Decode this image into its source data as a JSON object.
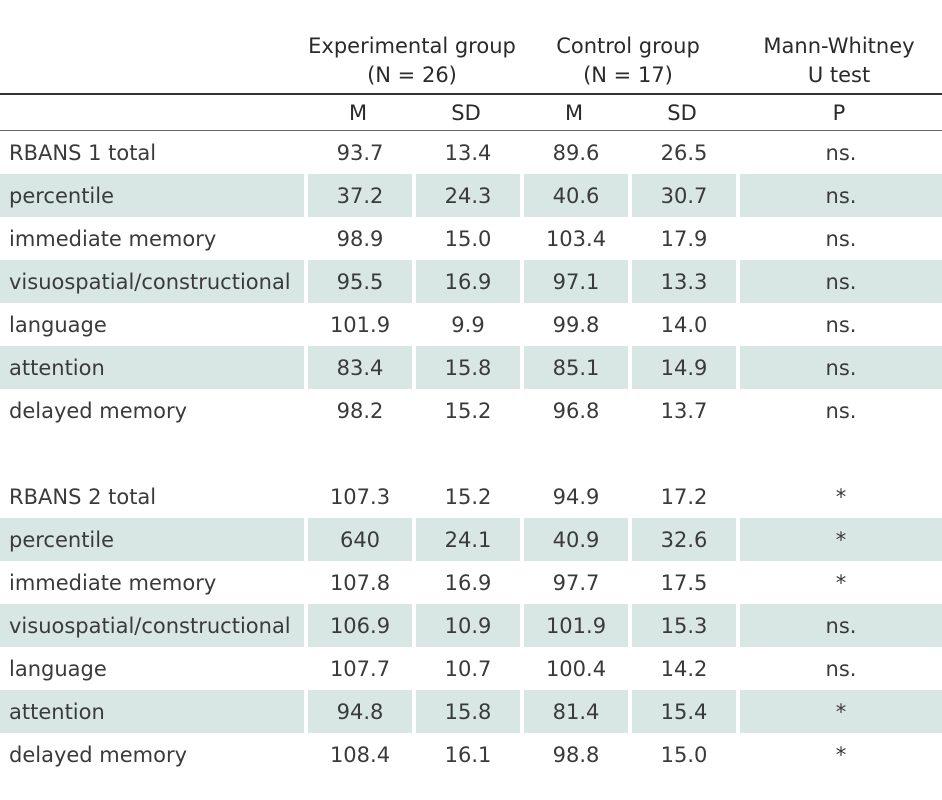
{
  "headers": {
    "experimental": "Experimental group",
    "experimental_n": "(N = 26)",
    "control": "Control group",
    "control_n": "(N = 17)",
    "test": "Mann-Whitney",
    "test2": "U test",
    "sub": [
      "M",
      "SD",
      "M",
      "SD",
      "P"
    ]
  },
  "rows": [
    {
      "label": "RBANS 1 total",
      "v": [
        "93.7",
        "13.4",
        "89.6",
        "26.5",
        "ns."
      ]
    },
    {
      "label": "percentile",
      "v": [
        "37.2",
        "24.3",
        "40.6",
        "30.7",
        "ns."
      ]
    },
    {
      "label": "immediate memory",
      "v": [
        "98.9",
        "15.0",
        "103.4",
        "17.9",
        "ns."
      ]
    },
    {
      "label": "visuospatial/constructional",
      "v": [
        "95.5",
        "16.9",
        "97.1",
        "13.3",
        "ns."
      ]
    },
    {
      "label": "language",
      "v": [
        "101.9",
        "9.9",
        "99.8",
        "14.0",
        "ns."
      ]
    },
    {
      "label": "attention",
      "v": [
        "83.4",
        "15.8",
        "85.1",
        "14.9",
        "ns."
      ]
    },
    {
      "label": "delayed memory",
      "v": [
        "98.2",
        "15.2",
        "96.8",
        "13.7",
        "ns."
      ]
    },
    {
      "label": "RBANS 2 total",
      "v": [
        "107.3",
        "15.2",
        "94.9",
        "17.2",
        "*"
      ]
    },
    {
      "label": "percentile",
      "v": [
        "640",
        "24.1",
        "40.9",
        "32.6",
        "*"
      ]
    },
    {
      "label": "immediate memory",
      "v": [
        "107.8",
        "16.9",
        "97.7",
        "17.5",
        "*"
      ]
    },
    {
      "label": "visuospatial/constructional",
      "v": [
        "106.9",
        "10.9",
        "101.9",
        "15.3",
        "ns."
      ]
    },
    {
      "label": "language",
      "v": [
        "107.7",
        "10.7",
        "100.4",
        "14.2",
        "ns."
      ]
    },
    {
      "label": "attention",
      "v": [
        "94.8",
        "15.8",
        "81.4",
        "15.4",
        "*"
      ]
    },
    {
      "label": "delayed memory",
      "v": [
        "108.4",
        "16.1",
        "98.8",
        "15.0",
        "*"
      ]
    }
  ]
}
